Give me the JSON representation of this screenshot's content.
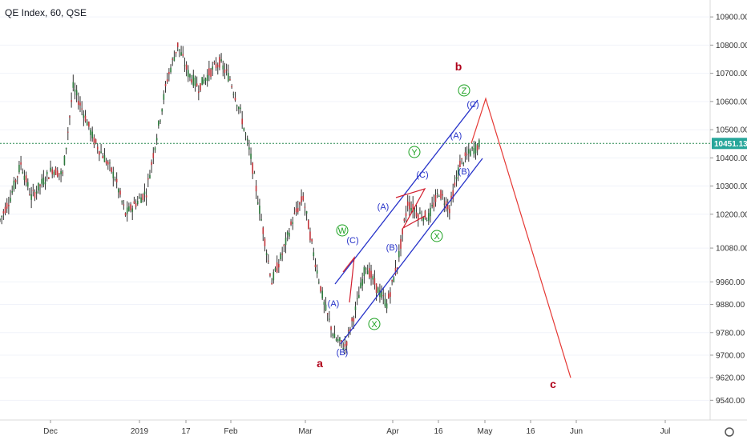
{
  "chart_data": {
    "type": "candlestick",
    "title": "QE Index, 60, QSE",
    "current_price": 10451.13,
    "ylim": [
      9470,
      10960
    ],
    "y_ticks": [
      "10900.00",
      "10800.00",
      "10700.00",
      "10600.00",
      "10500.00",
      "10400.00",
      "10300.00",
      "10200.00",
      "10080.00",
      "9960.00",
      "9880.00",
      "9780.00",
      "9700.00",
      "9620.00",
      "9540.00"
    ],
    "x_ticks": [
      "Dec",
      "2019",
      "17",
      "Feb",
      "Mar",
      "Apr",
      "16",
      "May",
      "16",
      "Jun",
      "Jul"
    ],
    "price_series": [
      {
        "t": 0,
        "v": 10180
      },
      {
        "t": 1,
        "v": 10260
      },
      {
        "t": 2,
        "v": 10380
      },
      {
        "t": 3,
        "v": 10260
      },
      {
        "t": 4,
        "v": 10310
      },
      {
        "t": 5,
        "v": 10360
      },
      {
        "t": 6,
        "v": 10340
      },
      {
        "t": 7,
        "v": 10650
      },
      {
        "t": 8,
        "v": 10560
      },
      {
        "t": 9,
        "v": 10460
      },
      {
        "t": 10,
        "v": 10400
      },
      {
        "t": 11,
        "v": 10330
      },
      {
        "t": 12,
        "v": 10200
      },
      {
        "t": 13,
        "v": 10240
      },
      {
        "t": 14,
        "v": 10280
      },
      {
        "t": 15,
        "v": 10480
      },
      {
        "t": 16,
        "v": 10680
      },
      {
        "t": 17,
        "v": 10800
      },
      {
        "t": 18,
        "v": 10700
      },
      {
        "t": 19,
        "v": 10650
      },
      {
        "t": 20,
        "v": 10700
      },
      {
        "t": 21,
        "v": 10740
      },
      {
        "t": 22,
        "v": 10680
      },
      {
        "t": 23,
        "v": 10560
      },
      {
        "t": 24,
        "v": 10400
      },
      {
        "t": 25,
        "v": 10180
      },
      {
        "t": 26,
        "v": 9960
      },
      {
        "t": 27,
        "v": 10060
      },
      {
        "t": 28,
        "v": 10180
      },
      {
        "t": 29,
        "v": 10260
      },
      {
        "t": 30,
        "v": 10060
      },
      {
        "t": 31,
        "v": 9880
      },
      {
        "t": 32,
        "v": 9760
      },
      {
        "t": 33,
        "v": 9730
      },
      {
        "t": 34,
        "v": 9860
      },
      {
        "t": 35,
        "v": 10020
      },
      {
        "t": 36,
        "v": 9940
      },
      {
        "t": 37,
        "v": 9880
      },
      {
        "t": 38,
        "v": 10020
      },
      {
        "t": 39,
        "v": 10240
      },
      {
        "t": 40,
        "v": 10200
      },
      {
        "t": 41,
        "v": 10190
      },
      {
        "t": 42,
        "v": 10280
      },
      {
        "t": 43,
        "v": 10220
      },
      {
        "t": 44,
        "v": 10380
      },
      {
        "t": 45,
        "v": 10420
      },
      {
        "t": 46,
        "v": 10451.13
      }
    ],
    "channel_lines": [
      {
        "from": [
          35,
          9920
        ],
        "to": [
          46,
          10600
        ]
      },
      {
        "from": [
          34,
          9740
        ],
        "to": [
          46,
          10380
        ]
      }
    ],
    "projection": [
      {
        "t": 46,
        "v": 10451.13
      },
      {
        "t": 47,
        "v": 10610
      },
      {
        "t": 55,
        "v": 9620
      }
    ],
    "wave_labels": {
      "blue": [
        "(A)",
        "(B)",
        "(C)",
        "(A)",
        "(B)",
        "(C)",
        "(A)",
        "(B)",
        "(C)"
      ],
      "green": [
        "W",
        "X",
        "Y",
        "X",
        "Z"
      ],
      "red": [
        "a",
        "b",
        "c"
      ]
    }
  }
}
